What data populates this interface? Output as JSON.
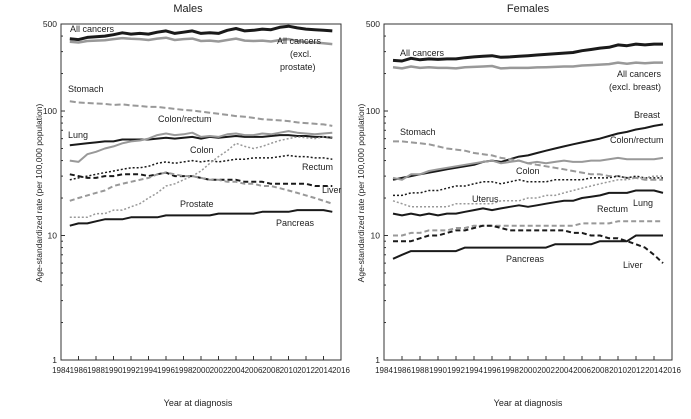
{
  "chart_data": [
    {
      "type": "line",
      "title": "Males",
      "xlabel": "Year at diagnosis",
      "ylabel": "Age-standardized rate (per 100,000 population)",
      "yscale": "log",
      "ylim": [
        1,
        500
      ],
      "xlim": [
        1984,
        2016
      ],
      "yticks": [
        "1",
        "10",
        "100",
        "500"
      ],
      "xticks": [
        "1984",
        "1986",
        "1988",
        "1990",
        "1992",
        "1994",
        "1996",
        "1998",
        "2000",
        "2002",
        "2004",
        "2006",
        "2008",
        "2010",
        "2012",
        "2014",
        "2016"
      ],
      "grid": false,
      "x": [
        1985,
        1986,
        1987,
        1988,
        1989,
        1990,
        1991,
        1992,
        1993,
        1994,
        1995,
        1996,
        1997,
        1998,
        1999,
        2000,
        2001,
        2002,
        2003,
        2004,
        2005,
        2006,
        2007,
        2008,
        2009,
        2010,
        2011,
        2012,
        2013,
        2014,
        2015
      ],
      "series": [
        {
          "name": "All cancers",
          "color": "#1a1a1a",
          "width": 3,
          "dash": "",
          "values": [
            380,
            375,
            390,
            395,
            400,
            410,
            425,
            415,
            420,
            415,
            430,
            440,
            420,
            430,
            440,
            420,
            425,
            420,
            445,
            460,
            440,
            445,
            455,
            450,
            470,
            480,
            465,
            455,
            450,
            445,
            440
          ]
        },
        {
          "name": "All cancers (excl. prostate)",
          "color": "#999999",
          "width": 2.5,
          "dash": "",
          "values": [
            360,
            355,
            365,
            368,
            370,
            378,
            385,
            380,
            378,
            372,
            382,
            388,
            372,
            378,
            382,
            365,
            368,
            362,
            372,
            382,
            368,
            365,
            368,
            362,
            372,
            378,
            365,
            358,
            355,
            350,
            345
          ]
        },
        {
          "name": "Stomach",
          "color": "#999999",
          "width": 2,
          "dash": "6,3",
          "values": [
            120,
            117,
            116,
            115,
            114,
            112,
            113,
            111,
            110,
            108,
            108,
            106,
            104,
            102,
            101,
            99,
            97,
            95,
            93,
            91,
            90,
            88,
            86,
            85,
            84,
            83,
            81,
            80,
            79,
            78,
            76
          ]
        },
        {
          "name": "Lung",
          "color": "#1a1a1a",
          "width": 2,
          "dash": "",
          "values": [
            53,
            54,
            55,
            56,
            57,
            57,
            59,
            59,
            59,
            59,
            60,
            61,
            60,
            61,
            62,
            60,
            62,
            61,
            62,
            63,
            62,
            62,
            62,
            63,
            64,
            64,
            63,
            63,
            62,
            62,
            61
          ]
        },
        {
          "name": "Colon/rectum",
          "color": "#999999",
          "width": 2,
          "dash": "",
          "values": [
            40,
            39,
            45,
            47,
            50,
            52,
            55,
            57,
            58,
            60,
            64,
            66,
            64,
            65,
            67,
            62,
            63,
            62,
            65,
            66,
            64,
            64,
            66,
            65,
            67,
            69,
            67,
            66,
            65,
            66,
            67
          ]
        },
        {
          "name": "Colon",
          "color": "#1a1a1a",
          "width": 1.5,
          "dash": "2,2",
          "values": [
            28,
            29,
            30,
            31,
            32,
            33,
            34,
            35,
            35,
            36,
            38,
            39,
            38,
            39,
            40,
            39,
            40,
            39,
            40,
            41,
            41,
            42,
            42,
            42,
            43,
            44,
            43,
            43,
            42,
            42,
            41
          ]
        },
        {
          "name": "Rectum",
          "color": "#1a1a1a",
          "width": 2,
          "dash": "5,3",
          "values": [
            31,
            30,
            29,
            29,
            30,
            30,
            31,
            31,
            31,
            30,
            31,
            32,
            30,
            30,
            30,
            29,
            28,
            28,
            28,
            28,
            27,
            27,
            27,
            26,
            26,
            26,
            26,
            26,
            25,
            25,
            25
          ]
        },
        {
          "name": "Liver",
          "color": "#999999",
          "width": 2,
          "dash": "5,3",
          "values": [
            19,
            20,
            21,
            22,
            23,
            25,
            26,
            27,
            28,
            29,
            31,
            32,
            31,
            30,
            30,
            29,
            28,
            28,
            27,
            27,
            26,
            26,
            25,
            25,
            24,
            23,
            22,
            21,
            20,
            19,
            18
          ]
        },
        {
          "name": "Prostate",
          "color": "#999999",
          "width": 1.5,
          "dash": "2,2",
          "values": [
            14,
            14,
            14,
            15,
            15,
            16,
            16,
            17,
            18,
            20,
            22,
            25,
            26,
            28,
            30,
            33,
            38,
            43,
            48,
            55,
            52,
            50,
            52,
            55,
            58,
            60,
            62,
            61,
            60,
            62,
            62
          ]
        },
        {
          "name": "Pancreas",
          "color": "#1a1a1a",
          "width": 2,
          "dash": "",
          "values": [
            12,
            12.5,
            12.5,
            13,
            13.5,
            13.5,
            13.5,
            14,
            14,
            14,
            14,
            14.5,
            14.5,
            14.5,
            14.5,
            14.5,
            14.5,
            15,
            15,
            15,
            15,
            15,
            15.5,
            15.5,
            15.5,
            15.5,
            16,
            16,
            16,
            16,
            15.5
          ]
        }
      ],
      "labels": [
        "All cancers",
        "All cancers",
        "(excl.",
        "prostate)",
        "Stomach",
        "Colon/rectum",
        "Lung",
        "Colon",
        "Rectum",
        "Liver",
        "Prostate",
        "Pancreas"
      ]
    },
    {
      "type": "line",
      "title": "Females",
      "xlabel": "Year at diagnosis",
      "ylabel": "Age-standardized rate (per 100,000 population)",
      "yscale": "log",
      "ylim": [
        1,
        500
      ],
      "xlim": [
        1984,
        2016
      ],
      "yticks": [
        "1",
        "10",
        "100",
        "500"
      ],
      "xticks": [
        "1984",
        "1986",
        "1988",
        "1990",
        "1992",
        "1994",
        "1996",
        "1998",
        "2000",
        "2002",
        "2004",
        "2006",
        "2008",
        "2010",
        "2012",
        "2014",
        "2016"
      ],
      "grid": false,
      "x": [
        1985,
        1986,
        1987,
        1988,
        1989,
        1990,
        1991,
        1992,
        1993,
        1994,
        1995,
        1996,
        1997,
        1998,
        1999,
        2000,
        2001,
        2002,
        2003,
        2004,
        2005,
        2006,
        2007,
        2008,
        2009,
        2010,
        2011,
        2012,
        2013,
        2014,
        2015
      ],
      "series": [
        {
          "name": "All cancers",
          "color": "#1a1a1a",
          "width": 3,
          "dash": "",
          "values": [
            255,
            252,
            265,
            258,
            262,
            260,
            262,
            262,
            268,
            272,
            275,
            278,
            270,
            272,
            275,
            278,
            282,
            285,
            288,
            292,
            295,
            305,
            312,
            320,
            325,
            340,
            335,
            345,
            340,
            345,
            345
          ]
        },
        {
          "name": "All cancers (excl. breast)",
          "color": "#999999",
          "width": 2.5,
          "dash": "",
          "values": [
            225,
            220,
            228,
            222,
            225,
            222,
            222,
            220,
            225,
            226,
            228,
            230,
            220,
            222,
            222,
            222,
            224,
            225,
            226,
            228,
            228,
            232,
            234,
            236,
            238,
            245,
            240,
            245,
            242,
            245,
            245
          ]
        },
        {
          "name": "Breast",
          "color": "#1a1a1a",
          "width": 2,
          "dash": "",
          "values": [
            28,
            29,
            30,
            31,
            32,
            33,
            34,
            35,
            36,
            37,
            39,
            40,
            39,
            41,
            43,
            44,
            46,
            48,
            50,
            52,
            54,
            56,
            58,
            60,
            63,
            66,
            68,
            71,
            73,
            76,
            78
          ]
        },
        {
          "name": "Stomach",
          "color": "#999999",
          "width": 2,
          "dash": "6,3",
          "values": [
            57,
            57,
            56,
            55,
            54,
            52,
            50,
            49,
            48,
            46,
            45,
            44,
            42,
            41,
            40,
            38,
            37,
            36,
            35,
            34,
            33,
            32,
            31,
            31,
            30,
            30,
            29,
            29,
            28,
            28,
            28
          ]
        },
        {
          "name": "Colon/rectum",
          "color": "#999999",
          "width": 2,
          "dash": "",
          "values": [
            29,
            28,
            31,
            31,
            33,
            34,
            35,
            36,
            37,
            38,
            39,
            40,
            38,
            39,
            40,
            38,
            39,
            38,
            39,
            40,
            39,
            39,
            40,
            40,
            41,
            42,
            41,
            41,
            41,
            41,
            42
          ]
        },
        {
          "name": "Colon",
          "color": "#1a1a1a",
          "width": 1.5,
          "dash": "2,2",
          "values": [
            21,
            21,
            22,
            22,
            23,
            23,
            24,
            25,
            25,
            26,
            27,
            27,
            26,
            27,
            28,
            27,
            27,
            27,
            28,
            28,
            28,
            28,
            29,
            29,
            29,
            30,
            29,
            30,
            29,
            29,
            29
          ]
        },
        {
          "name": "Uterus",
          "color": "#999999",
          "width": 1.5,
          "dash": "2,2",
          "values": [
            19,
            18,
            17,
            17,
            17,
            17,
            17,
            18,
            18,
            18,
            18,
            18,
            19,
            19,
            19,
            20,
            20,
            21,
            21,
            22,
            23,
            24,
            25,
            26,
            27,
            28,
            28,
            29,
            29,
            30,
            30
          ]
        },
        {
          "name": "Lung",
          "color": "#1a1a1a",
          "width": 2,
          "dash": "",
          "values": [
            15,
            14.5,
            15,
            14.5,
            15,
            14.5,
            15,
            15,
            15.5,
            16,
            16.5,
            16,
            16.5,
            17,
            17.5,
            17,
            17.5,
            18,
            18.5,
            19,
            19,
            20,
            20.5,
            21,
            22,
            22,
            22,
            23,
            23,
            23,
            22
          ]
        },
        {
          "name": "Rectum",
          "color": "#999999",
          "width": 2,
          "dash": "5,3",
          "values": [
            10,
            10,
            10.5,
            10.5,
            11,
            11,
            11,
            11.5,
            11.5,
            12,
            12,
            12,
            12,
            12,
            12,
            12,
            12,
            12,
            12,
            12,
            12,
            12.5,
            12.5,
            12.5,
            12.5,
            13,
            13,
            13,
            13,
            13,
            13
          ]
        },
        {
          "name": "Liver",
          "color": "#1a1a1a",
          "width": 2,
          "dash": "5,3",
          "values": [
            9,
            9,
            9,
            9.5,
            10,
            10,
            10.5,
            11,
            11,
            11.5,
            12,
            12,
            11.5,
            11,
            11,
            11,
            11,
            11,
            11,
            11,
            10.5,
            10.5,
            10,
            10,
            9.5,
            9.5,
            9,
            8.5,
            8,
            7,
            6
          ]
        },
        {
          "name": "Pancreas",
          "color": "#1a1a1a",
          "width": 2,
          "dash": "",
          "values": [
            6.5,
            7,
            7.5,
            7.5,
            7.5,
            7.5,
            7.5,
            7.5,
            8,
            8,
            8,
            8,
            8,
            8,
            8,
            8,
            8,
            8,
            8.5,
            8.5,
            8.5,
            8.5,
            8.5,
            9,
            9,
            9,
            9,
            10,
            10,
            10,
            10
          ]
        }
      ],
      "labels": [
        "All cancers",
        "All cancers",
        "(excl. breast)",
        "Breast",
        "Stomach",
        "Colon/rectum",
        "Colon",
        "Uterus",
        "Rectum",
        "Lung",
        "Liver",
        "Pancreas"
      ]
    }
  ]
}
